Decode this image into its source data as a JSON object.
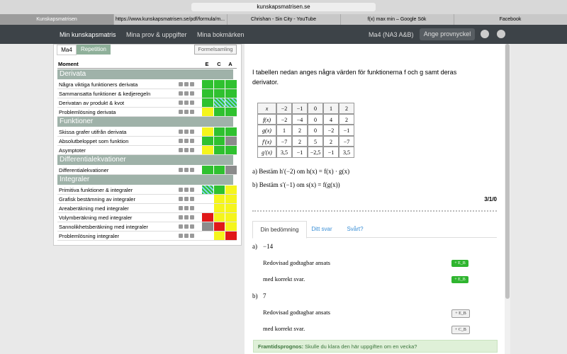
{
  "browser": {
    "url": "kunskapsmatrisen.se",
    "tabs": [
      "Kunskapsmatrisen",
      "https://www.kunskapsmatrisen.se/pdf/formula/m...",
      "Chrishan - Sin City - YouTube",
      "f(x) max min – Google Sök",
      "Facebook"
    ]
  },
  "nav": {
    "links": [
      "Min kunskapsmatris",
      "Mina prov & uppgifter",
      "Mina bokmärken"
    ],
    "course": "Ma4 (NA3 A&B)",
    "button": "Ange provnyckel"
  },
  "matrix": {
    "tabs": [
      "Ma4",
      "Repetition"
    ],
    "formula_button": "Formelsamling",
    "header": [
      "Moment",
      "E",
      "C",
      "A"
    ],
    "sections": [
      {
        "title": "Derivata",
        "rows": [
          {
            "name": "Några viktiga funktioners derivata",
            "cells": [
              "green",
              "green",
              "green"
            ]
          },
          {
            "name": "Sammansatta funktioner & kedjeregeln",
            "cells": [
              "green",
              "green",
              "green"
            ]
          },
          {
            "name": "Derivatan av produkt & kvot",
            "cells": [
              "green",
              "hatched",
              "hatched"
            ]
          },
          {
            "name": "Problemlösning derivata",
            "cells": [
              "yellow",
              "green",
              "green"
            ]
          }
        ]
      },
      {
        "title": "Funktioner",
        "rows": [
          {
            "name": "Skissa grafer utifrån derivata",
            "cells": [
              "yellow",
              "green",
              "green"
            ]
          },
          {
            "name": "Absolutbeloppet som funktion",
            "cells": [
              "green",
              "green",
              "gray"
            ]
          },
          {
            "name": "Asymptoter",
            "cells": [
              "yellow",
              "green",
              "green"
            ]
          }
        ]
      },
      {
        "title": "Differentialekvationer",
        "rows": [
          {
            "name": "Differentialekvationer",
            "cells": [
              "green",
              "green",
              "gray"
            ]
          }
        ]
      },
      {
        "title": "Integraler",
        "rows": [
          {
            "name": "Primitiva funktioner & integraler",
            "cells": [
              "hatched",
              "green",
              "yellow"
            ]
          },
          {
            "name": "Grafisk bestämning av integraler",
            "cells": [
              "white",
              "yellow",
              "yellow"
            ]
          },
          {
            "name": "Areaberäkning med integraler",
            "cells": [
              "white",
              "yellow",
              "yellow"
            ]
          },
          {
            "name": "Volymberäkning med integraler",
            "cells": [
              "red",
              "yellow",
              "yellow"
            ]
          },
          {
            "name": "Sannolikhetsberäkning med integraler",
            "cells": [
              "gray",
              "red",
              "yellow"
            ]
          },
          {
            "name": "Problemlösning integraler",
            "cells": [
              "white",
              "yellow",
              "red"
            ]
          }
        ]
      }
    ]
  },
  "task": {
    "intro": "I tabellen nedan anges några värden för funktionerna f och g samt deras derivator.",
    "table": [
      [
        "x",
        "−2",
        "−1",
        "0",
        "1",
        "2"
      ],
      [
        "f(x)",
        "−2",
        "−4",
        "0",
        "4",
        "2"
      ],
      [
        "g(x)",
        "1",
        "2",
        "0",
        "−2",
        "−1"
      ],
      [
        "f′(x)",
        "−7",
        "2",
        "5",
        "2",
        "−7"
      ],
      [
        "g′(x)",
        "3,5",
        "−1",
        "−2,5",
        "−1",
        "3,5"
      ]
    ],
    "questions": [
      "a)  Bestäm  h′(−2)  om  h(x) = f(x) · g(x)",
      "b)  Bestäm  s′(−1)  om  s(x) = f(g(x))"
    ],
    "points": "3/1/0",
    "tabs": [
      "Din bedömning",
      "Ditt svar",
      "Svårt?"
    ],
    "answers": [
      {
        "label": "a)",
        "answer": "−14",
        "criteria": [
          {
            "text": "Redovisad godtagbar ansats",
            "button": "+ E_B",
            "state": "active"
          },
          {
            "text": "med korrekt svar.",
            "button": "+ E_B",
            "state": "active"
          }
        ]
      },
      {
        "label": "b)",
        "answer": "7",
        "criteria": [
          {
            "text": "Redovisad godtagbar ansats",
            "button": "+ E_B",
            "state": "inactive"
          },
          {
            "text": "med korrekt svar.",
            "button": "+ C_B",
            "state": "inactive"
          }
        ]
      }
    ],
    "forecast": {
      "label": "Framtidsprognos:",
      "text": "Skulle du klara den här uppgiften om en vecka?"
    }
  }
}
